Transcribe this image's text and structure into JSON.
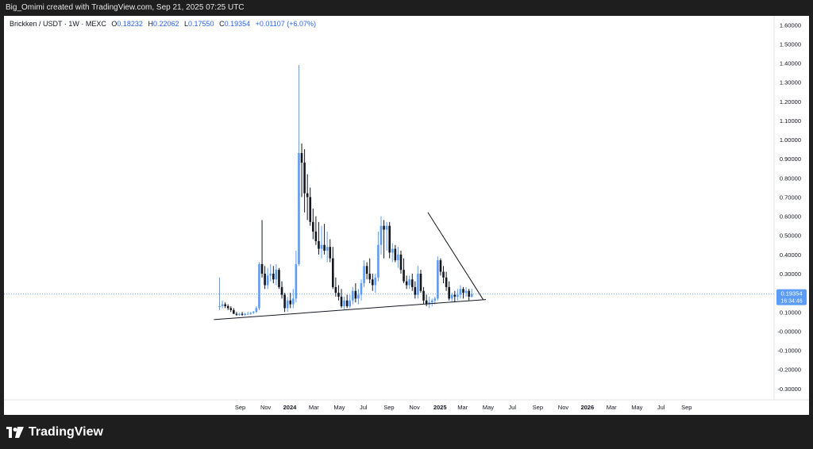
{
  "header": {
    "attribution": "Big_Omimi created with TradingView.com, Sep 21, 2025 07:25 UTC"
  },
  "legend": {
    "symbol": "Brickken / USDT · 1W · MEXC",
    "o_label": "O",
    "o_value": "0.18232",
    "h_label": "H",
    "h_value": "0.22062",
    "l_label": "L",
    "l_value": "0.17550",
    "c_label": "C",
    "c_value": "0.19354",
    "change": "+0.01107 (+6.07%)"
  },
  "price_tag": {
    "price": "0.19354",
    "countdown": "16:34:46"
  },
  "footer": {
    "brand": "TradingView"
  },
  "colors": {
    "up": "#5b9cf6",
    "down": "#131722",
    "accent": "#2962ff",
    "trendline": "#131722"
  },
  "chart_data": {
    "type": "candlestick",
    "interval": "1W",
    "ylim": [
      -0.34,
      1.66
    ],
    "y_ticks": [
      "1.60000",
      "1.50000",
      "1.40000",
      "1.30000",
      "1.20000",
      "1.10000",
      "1.00000",
      "0.90000",
      "0.80000",
      "0.70000",
      "0.60000",
      "0.50000",
      "0.40000",
      "0.30000",
      "0.20000",
      "0.10000",
      "-0.00000",
      "-0.10000",
      "-0.20000",
      "-0.30000"
    ],
    "x_ticks": [
      {
        "label": "Sep",
        "week": 0,
        "bold": false
      },
      {
        "label": "Nov",
        "week": 9,
        "bold": false
      },
      {
        "label": "2024",
        "week": 17.5,
        "bold": true
      },
      {
        "label": "Mar",
        "week": 26,
        "bold": false
      },
      {
        "label": "May",
        "week": 35,
        "bold": false
      },
      {
        "label": "Jul",
        "week": 43.5,
        "bold": false
      },
      {
        "label": "Sep",
        "week": 52.5,
        "bold": false
      },
      {
        "label": "Nov",
        "week": 61.5,
        "bold": false
      },
      {
        "label": "2025",
        "week": 70.5,
        "bold": true
      },
      {
        "label": "Mar",
        "week": 78.5,
        "bold": false
      },
      {
        "label": "May",
        "week": 87.5,
        "bold": false
      },
      {
        "label": "Jul",
        "week": 96,
        "bold": false
      },
      {
        "label": "Sep",
        "week": 105,
        "bold": false
      },
      {
        "label": "Nov",
        "week": 114,
        "bold": false
      },
      {
        "label": "2026",
        "week": 122.5,
        "bold": true
      },
      {
        "label": "Mar",
        "week": 131,
        "bold": false
      },
      {
        "label": "May",
        "week": 140,
        "bold": false
      },
      {
        "label": "Jul",
        "week": 148.5,
        "bold": false
      },
      {
        "label": "Sep",
        "week": 157.5,
        "bold": false
      }
    ],
    "ohlc": [
      [
        0.125,
        0.28,
        0.11,
        0.13
      ],
      [
        0.13,
        0.16,
        0.12,
        0.14
      ],
      [
        0.14,
        0.15,
        0.12,
        0.13
      ],
      [
        0.13,
        0.14,
        0.11,
        0.12
      ],
      [
        0.12,
        0.13,
        0.1,
        0.11
      ],
      [
        0.11,
        0.12,
        0.09,
        0.09
      ],
      [
        0.09,
        0.1,
        0.08,
        0.085
      ],
      [
        0.085,
        0.095,
        0.08,
        0.09
      ],
      [
        0.09,
        0.1,
        0.08,
        0.085
      ],
      [
        0.085,
        0.095,
        0.08,
        0.09
      ],
      [
        0.09,
        0.1,
        0.085,
        0.09
      ],
      [
        0.09,
        0.1,
        0.085,
        0.095
      ],
      [
        0.095,
        0.105,
        0.09,
        0.1
      ],
      [
        0.1,
        0.13,
        0.095,
        0.12
      ],
      [
        0.12,
        0.36,
        0.11,
        0.35
      ],
      [
        0.35,
        0.58,
        0.28,
        0.3
      ],
      [
        0.3,
        0.34,
        0.22,
        0.24
      ],
      [
        0.24,
        0.33,
        0.22,
        0.29
      ],
      [
        0.29,
        0.35,
        0.26,
        0.3
      ],
      [
        0.3,
        0.34,
        0.25,
        0.27
      ],
      [
        0.27,
        0.35,
        0.24,
        0.32
      ],
      [
        0.32,
        0.33,
        0.22,
        0.23
      ],
      [
        0.23,
        0.26,
        0.17,
        0.19
      ],
      [
        0.19,
        0.2,
        0.1,
        0.12
      ],
      [
        0.12,
        0.18,
        0.1,
        0.16
      ],
      [
        0.16,
        0.2,
        0.12,
        0.14
      ],
      [
        0.14,
        0.22,
        0.12,
        0.17
      ],
      [
        0.17,
        0.42,
        0.15,
        0.35
      ],
      [
        0.35,
        1.39,
        0.34,
        0.93
      ],
      [
        0.93,
        0.98,
        0.7,
        0.88
      ],
      [
        0.88,
        0.95,
        0.62,
        0.72
      ],
      [
        0.72,
        0.82,
        0.58,
        0.7
      ],
      [
        0.7,
        0.75,
        0.55,
        0.57
      ],
      [
        0.57,
        0.64,
        0.48,
        0.52
      ],
      [
        0.52,
        0.6,
        0.45,
        0.47
      ],
      [
        0.47,
        0.57,
        0.4,
        0.43
      ],
      [
        0.43,
        0.55,
        0.38,
        0.45
      ],
      [
        0.45,
        0.56,
        0.4,
        0.42
      ],
      [
        0.42,
        0.52,
        0.36,
        0.44
      ],
      [
        0.44,
        0.48,
        0.36,
        0.38
      ],
      [
        0.38,
        0.44,
        0.22,
        0.23
      ],
      [
        0.23,
        0.28,
        0.18,
        0.2
      ],
      [
        0.2,
        0.24,
        0.16,
        0.18
      ],
      [
        0.18,
        0.22,
        0.12,
        0.13
      ],
      [
        0.13,
        0.18,
        0.11,
        0.16
      ],
      [
        0.16,
        0.19,
        0.12,
        0.13
      ],
      [
        0.13,
        0.19,
        0.12,
        0.16
      ],
      [
        0.16,
        0.23,
        0.14,
        0.21
      ],
      [
        0.21,
        0.25,
        0.15,
        0.17
      ],
      [
        0.17,
        0.22,
        0.14,
        0.19
      ],
      [
        0.19,
        0.27,
        0.16,
        0.25
      ],
      [
        0.25,
        0.37,
        0.23,
        0.34
      ],
      [
        0.34,
        0.36,
        0.27,
        0.3
      ],
      [
        0.3,
        0.38,
        0.25,
        0.27
      ],
      [
        0.27,
        0.3,
        0.21,
        0.24
      ],
      [
        0.24,
        0.3,
        0.2,
        0.28
      ],
      [
        0.28,
        0.52,
        0.26,
        0.45
      ],
      [
        0.45,
        0.6,
        0.4,
        0.55
      ],
      [
        0.55,
        0.58,
        0.38,
        0.53
      ],
      [
        0.53,
        0.57,
        0.42,
        0.55
      ],
      [
        0.55,
        0.57,
        0.38,
        0.41
      ],
      [
        0.41,
        0.46,
        0.36,
        0.43
      ],
      [
        0.43,
        0.45,
        0.36,
        0.37
      ],
      [
        0.37,
        0.44,
        0.33,
        0.4
      ],
      [
        0.4,
        0.42,
        0.3,
        0.32
      ],
      [
        0.32,
        0.38,
        0.25,
        0.26
      ],
      [
        0.26,
        0.29,
        0.22,
        0.24
      ],
      [
        0.24,
        0.29,
        0.22,
        0.27
      ],
      [
        0.27,
        0.3,
        0.21,
        0.23
      ],
      [
        0.23,
        0.26,
        0.17,
        0.19
      ],
      [
        0.19,
        0.34,
        0.17,
        0.3
      ],
      [
        0.3,
        0.32,
        0.2,
        0.21
      ],
      [
        0.21,
        0.23,
        0.14,
        0.16
      ],
      [
        0.16,
        0.19,
        0.13,
        0.14
      ],
      [
        0.14,
        0.18,
        0.12,
        0.15
      ],
      [
        0.15,
        0.17,
        0.13,
        0.16
      ],
      [
        0.16,
        0.18,
        0.14,
        0.17
      ],
      [
        0.17,
        0.39,
        0.16,
        0.37
      ],
      [
        0.37,
        0.38,
        0.29,
        0.31
      ],
      [
        0.31,
        0.34,
        0.25,
        0.28
      ],
      [
        0.28,
        0.31,
        0.21,
        0.23
      ],
      [
        0.23,
        0.26,
        0.16,
        0.17
      ],
      [
        0.17,
        0.2,
        0.15,
        0.19
      ],
      [
        0.19,
        0.21,
        0.15,
        0.18
      ],
      [
        0.18,
        0.22,
        0.16,
        0.19
      ],
      [
        0.19,
        0.24,
        0.17,
        0.22
      ],
      [
        0.22,
        0.23,
        0.17,
        0.2
      ],
      [
        0.2,
        0.23,
        0.18,
        0.21
      ],
      [
        0.21,
        0.22,
        0.16,
        0.18
      ],
      [
        0.18,
        0.221,
        0.176,
        0.194
      ]
    ],
    "trendlines": [
      {
        "name": "resistance",
        "from": [
          73.5,
          0.62
        ],
        "to": [
          93,
          0.165
        ]
      },
      {
        "name": "support",
        "from": [
          -2,
          0.06
        ],
        "to": [
          94,
          0.165
        ]
      }
    ],
    "last_price": 0.19354
  }
}
